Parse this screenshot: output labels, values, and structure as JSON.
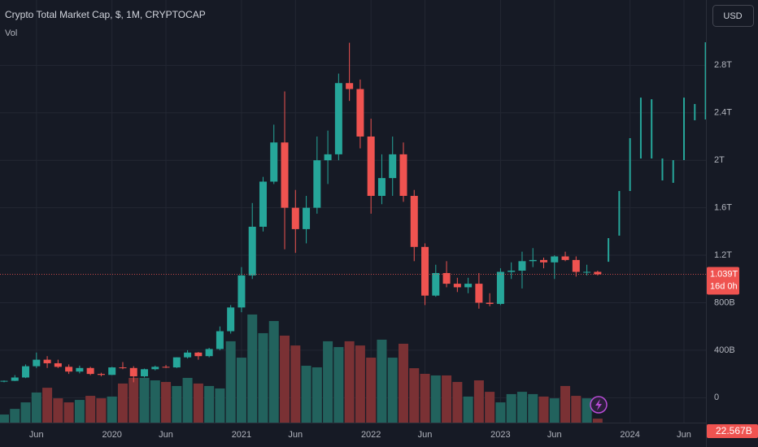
{
  "chart_data": {
    "type": "candlestick",
    "title": "Crypto Total Market Cap, $, 1M, CRYPTOCAP",
    "volume_title": "Vol",
    "currency": "USD",
    "up_color": "#26a69a",
    "down_color": "#ef5350",
    "volume_up_color": "#22625d",
    "volume_down_color": "#7a3134",
    "x": [
      "2019-03",
      "2019-04",
      "2019-05",
      "2019-06",
      "2019-07",
      "2019-08",
      "2019-09",
      "2019-10",
      "2019-11",
      "2019-12",
      "2020-01",
      "2020-02",
      "2020-03",
      "2020-04",
      "2020-05",
      "2020-06",
      "2020-07",
      "2020-08",
      "2020-09",
      "2020-10",
      "2020-11",
      "2020-12",
      "2021-01",
      "2021-02",
      "2021-03",
      "2021-04",
      "2021-05",
      "2021-06",
      "2021-07",
      "2021-08",
      "2021-09",
      "2021-10",
      "2021-11",
      "2021-12",
      "2022-01",
      "2022-02",
      "2022-03",
      "2022-04",
      "2022-05",
      "2022-06",
      "2022-07",
      "2022-08",
      "2022-09",
      "2022-10",
      "2022-11",
      "2022-12",
      "2023-01",
      "2023-02",
      "2023-03",
      "2023-04",
      "2023-05",
      "2023-06",
      "2023-07",
      "2023-08",
      "2023-09",
      "2023-10"
    ],
    "open": [
      135,
      142,
      170,
      265,
      320,
      290,
      260,
      220,
      250,
      200,
      192,
      255,
      250,
      180,
      240,
      260,
      255,
      340,
      380,
      350,
      410,
      560,
      760,
      1030,
      1440,
      1820,
      2150,
      1600,
      1420,
      1600,
      2000,
      2050,
      2650,
      2600,
      2200,
      1700,
      1850,
      2050,
      1700,
      1270,
      860,
      1050,
      960,
      930,
      960,
      800,
      790,
      1060,
      1070,
      1150,
      1160,
      1140,
      1190,
      1160,
      1060,
      1060
    ],
    "high": [
      145,
      190,
      280,
      380,
      350,
      320,
      280,
      270,
      260,
      210,
      260,
      300,
      265,
      245,
      270,
      275,
      340,
      400,
      385,
      420,
      600,
      780,
      1100,
      1640,
      1860,
      2300,
      2580,
      1750,
      1700,
      2200,
      2250,
      2730,
      2990,
      2680,
      2350,
      2050,
      2200,
      2150,
      1750,
      1300,
      1120,
      1150,
      1010,
      1010,
      1050,
      880,
      1090,
      1140,
      1230,
      1260,
      1180,
      1200,
      1230,
      1190,
      1120,
      1070
    ],
    "low": [
      130,
      140,
      165,
      250,
      250,
      250,
      200,
      205,
      190,
      180,
      190,
      240,
      130,
      170,
      230,
      250,
      250,
      330,
      320,
      340,
      400,
      540,
      720,
      1000,
      1400,
      1800,
      1250,
      1220,
      1300,
      1550,
      1800,
      2000,
      2500,
      2100,
      1550,
      1630,
      1700,
      1650,
      1150,
      780,
      850,
      930,
      890,
      880,
      750,
      770,
      780,
      1000,
      920,
      1100,
      1090,
      1000,
      1150,
      1020,
      1030,
      1030
    ],
    "close": [
      142,
      170,
      265,
      320,
      290,
      260,
      220,
      250,
      200,
      192,
      255,
      250,
      180,
      240,
      260,
      255,
      340,
      380,
      350,
      410,
      560,
      760,
      1030,
      1440,
      1820,
      2150,
      1600,
      1420,
      1600,
      2000,
      2050,
      2650,
      2600,
      2200,
      1700,
      1850,
      2050,
      1700,
      1270,
      860,
      1050,
      960,
      930,
      960,
      800,
      790,
      1060,
      1070,
      1150,
      1160,
      1140,
      1190,
      1160,
      1060,
      1060,
      1039
    ],
    "last_price_label": "1.039T",
    "countdown": "16d 0h",
    "volume": [
      46,
      78,
      115,
      171,
      198,
      138,
      115,
      129,
      152,
      138,
      148,
      222,
      254,
      254,
      240,
      231,
      208,
      254,
      222,
      208,
      194,
      462,
      369,
      614,
      508,
      577,
      494,
      438,
      323,
      314,
      462,
      429,
      462,
      438,
      369,
      471,
      369,
      448,
      309,
      277,
      268,
      268,
      231,
      148,
      240,
      175,
      115,
      162,
      175,
      162,
      148,
      138,
      208,
      152,
      138,
      22.567
    ],
    "last_volume_label": "22.567B",
    "projection": {
      "x": [
        "2023-11",
        "2023-12",
        "2024-01",
        "2024-02",
        "2024-03",
        "2024-04",
        "2024-05",
        "2024-06",
        "2024-07",
        "2024-08"
      ],
      "low": [
        1145,
        1365,
        1741,
        2015,
        2015,
        1830,
        1810,
        2001,
        2337,
        2344
      ],
      "high": [
        1344,
        1741,
        2186,
        2528,
        2514,
        2015,
        2001,
        2528,
        2474,
        2994
      ]
    },
    "ylim": [
      -210,
      3350
    ],
    "yticks": [
      0,
      {
        "value": 400,
        "label": "400B"
      },
      {
        "value": 800,
        "label": "800B"
      },
      {
        "value": 1200,
        "label": "1.2T"
      },
      {
        "value": 1600,
        "label": "1.6T"
      },
      {
        "value": 2000,
        "label": "2T"
      },
      {
        "value": 2400,
        "label": "2.4T"
      },
      {
        "value": 2800,
        "label": "2.8T"
      }
    ],
    "y2lim": [
      0,
      2400
    ],
    "xticks": [
      {
        "value": "2019-06",
        "label": "Jun"
      },
      {
        "value": "2020-01",
        "label": "2020"
      },
      {
        "value": "2020-06",
        "label": "Jun"
      },
      {
        "value": "2021-01",
        "label": "2021"
      },
      {
        "value": "2021-06",
        "label": "Jun"
      },
      {
        "value": "2022-01",
        "label": "2022"
      },
      {
        "value": "2022-06",
        "label": "Jun"
      },
      {
        "value": "2023-01",
        "label": "2023"
      },
      {
        "value": "2023-06",
        "label": "Jun"
      },
      {
        "value": "2024-01",
        "label": "2024"
      },
      {
        "value": "2024-06",
        "label": "Jun"
      }
    ],
    "grid": true
  }
}
